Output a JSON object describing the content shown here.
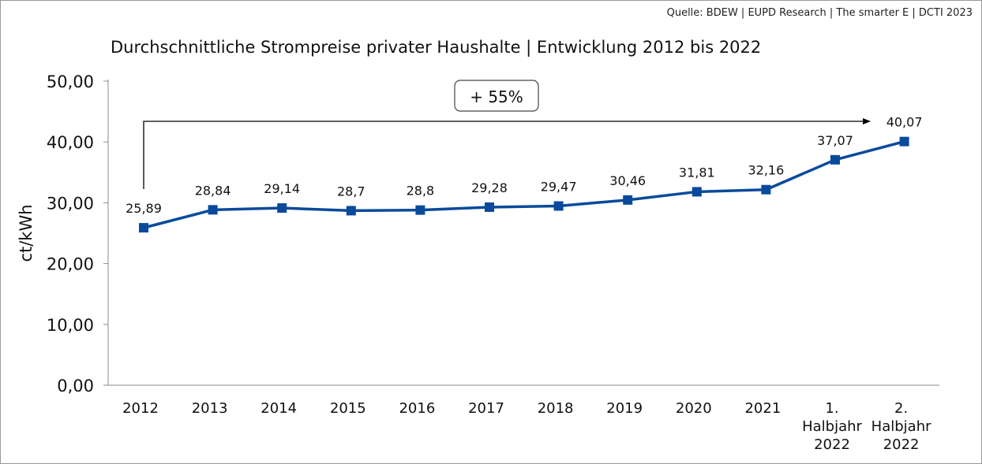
{
  "source": "Quelle: BDEW | EUPD Research | The smarter E | DCTI 2023",
  "chart_data": {
    "type": "line",
    "title": "Durchschnittliche Strompreise privater Haushalte | Entwicklung 2012 bis 2022",
    "xlabel": "",
    "ylabel": "ct/kWh",
    "ylim": [
      0,
      50
    ],
    "yticks": [
      "0,00",
      "10,00",
      "20,00",
      "30,00",
      "40,00",
      "50,00"
    ],
    "grid": false,
    "categories": [
      [
        "2012"
      ],
      [
        "2013"
      ],
      [
        "2014"
      ],
      [
        "2015"
      ],
      [
        "2016"
      ],
      [
        "2017"
      ],
      [
        "2018"
      ],
      [
        "2019"
      ],
      [
        "2020"
      ],
      [
        "2021"
      ],
      [
        "1.",
        "Halbjahr",
        "2022"
      ],
      [
        "2.",
        "Halbjahr",
        "2022"
      ]
    ],
    "values": [
      25.89,
      28.84,
      29.14,
      28.7,
      28.8,
      29.28,
      29.47,
      30.46,
      31.81,
      32.16,
      37.07,
      40.07
    ],
    "data_labels": [
      "25,89",
      "28,84",
      "29,14",
      "28,7",
      "28,8",
      "29,28",
      "29,47",
      "30,46",
      "31,81",
      "32,16",
      "37,07",
      "40,07"
    ],
    "color": "#0a4a9c",
    "annotation": "+ 55%"
  }
}
